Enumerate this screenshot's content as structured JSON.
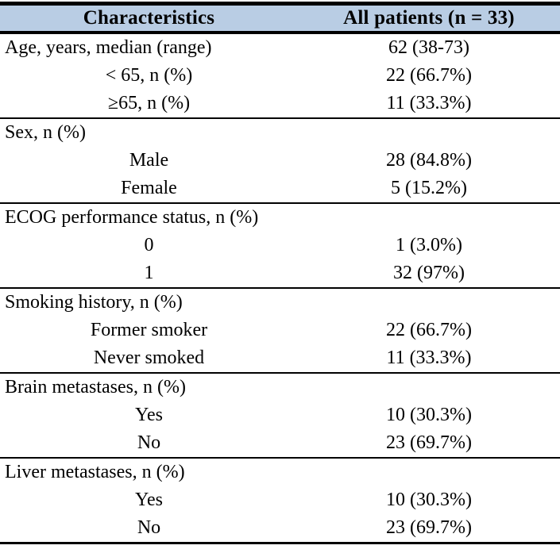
{
  "table": {
    "header": {
      "characteristics": "Characteristics",
      "all_patients": "All patients (n = 33)"
    },
    "sections": [
      {
        "name": "age",
        "rows": [
          {
            "label": "Age, years, median (range)",
            "value": "62 (38-73)"
          },
          {
            "label": "< 65, n (%)",
            "value": "22 (66.7%)"
          },
          {
            "label": "≥65, n (%)",
            "value": "11 (33.3%)"
          }
        ]
      },
      {
        "name": "sex",
        "rows": [
          {
            "label": "Sex, n (%)",
            "value": ""
          },
          {
            "label": "Male",
            "value": "28 (84.8%)"
          },
          {
            "label": "Female",
            "value": "5 (15.2%)"
          }
        ]
      },
      {
        "name": "ecog",
        "rows": [
          {
            "label": "ECOG performance status, n (%)",
            "value": ""
          },
          {
            "label": "0",
            "value": "1 (3.0%)"
          },
          {
            "label": "1",
            "value": "32 (97%)"
          }
        ]
      },
      {
        "name": "smoking",
        "rows": [
          {
            "label": "Smoking history, n (%)",
            "value": ""
          },
          {
            "label": "Former smoker",
            "value": "22 (66.7%)"
          },
          {
            "label": "Never smoked",
            "value": "11 (33.3%)"
          }
        ]
      },
      {
        "name": "brain-metastases",
        "rows": [
          {
            "label": "Brain metastases, n (%)",
            "value": ""
          },
          {
            "label": "Yes",
            "value": "10 (30.3%)"
          },
          {
            "label": "No",
            "value": "23 (69.7%)"
          }
        ]
      },
      {
        "name": "liver-metastases",
        "rows": [
          {
            "label": "Liver metastases, n (%)",
            "value": ""
          },
          {
            "label": "Yes",
            "value": "10 (30.3%)"
          },
          {
            "label": "No",
            "value": "23 (69.7%)"
          }
        ]
      }
    ]
  },
  "colors": {
    "header_bg": "#b9cde4",
    "border": "#000000",
    "text": "#000000"
  }
}
